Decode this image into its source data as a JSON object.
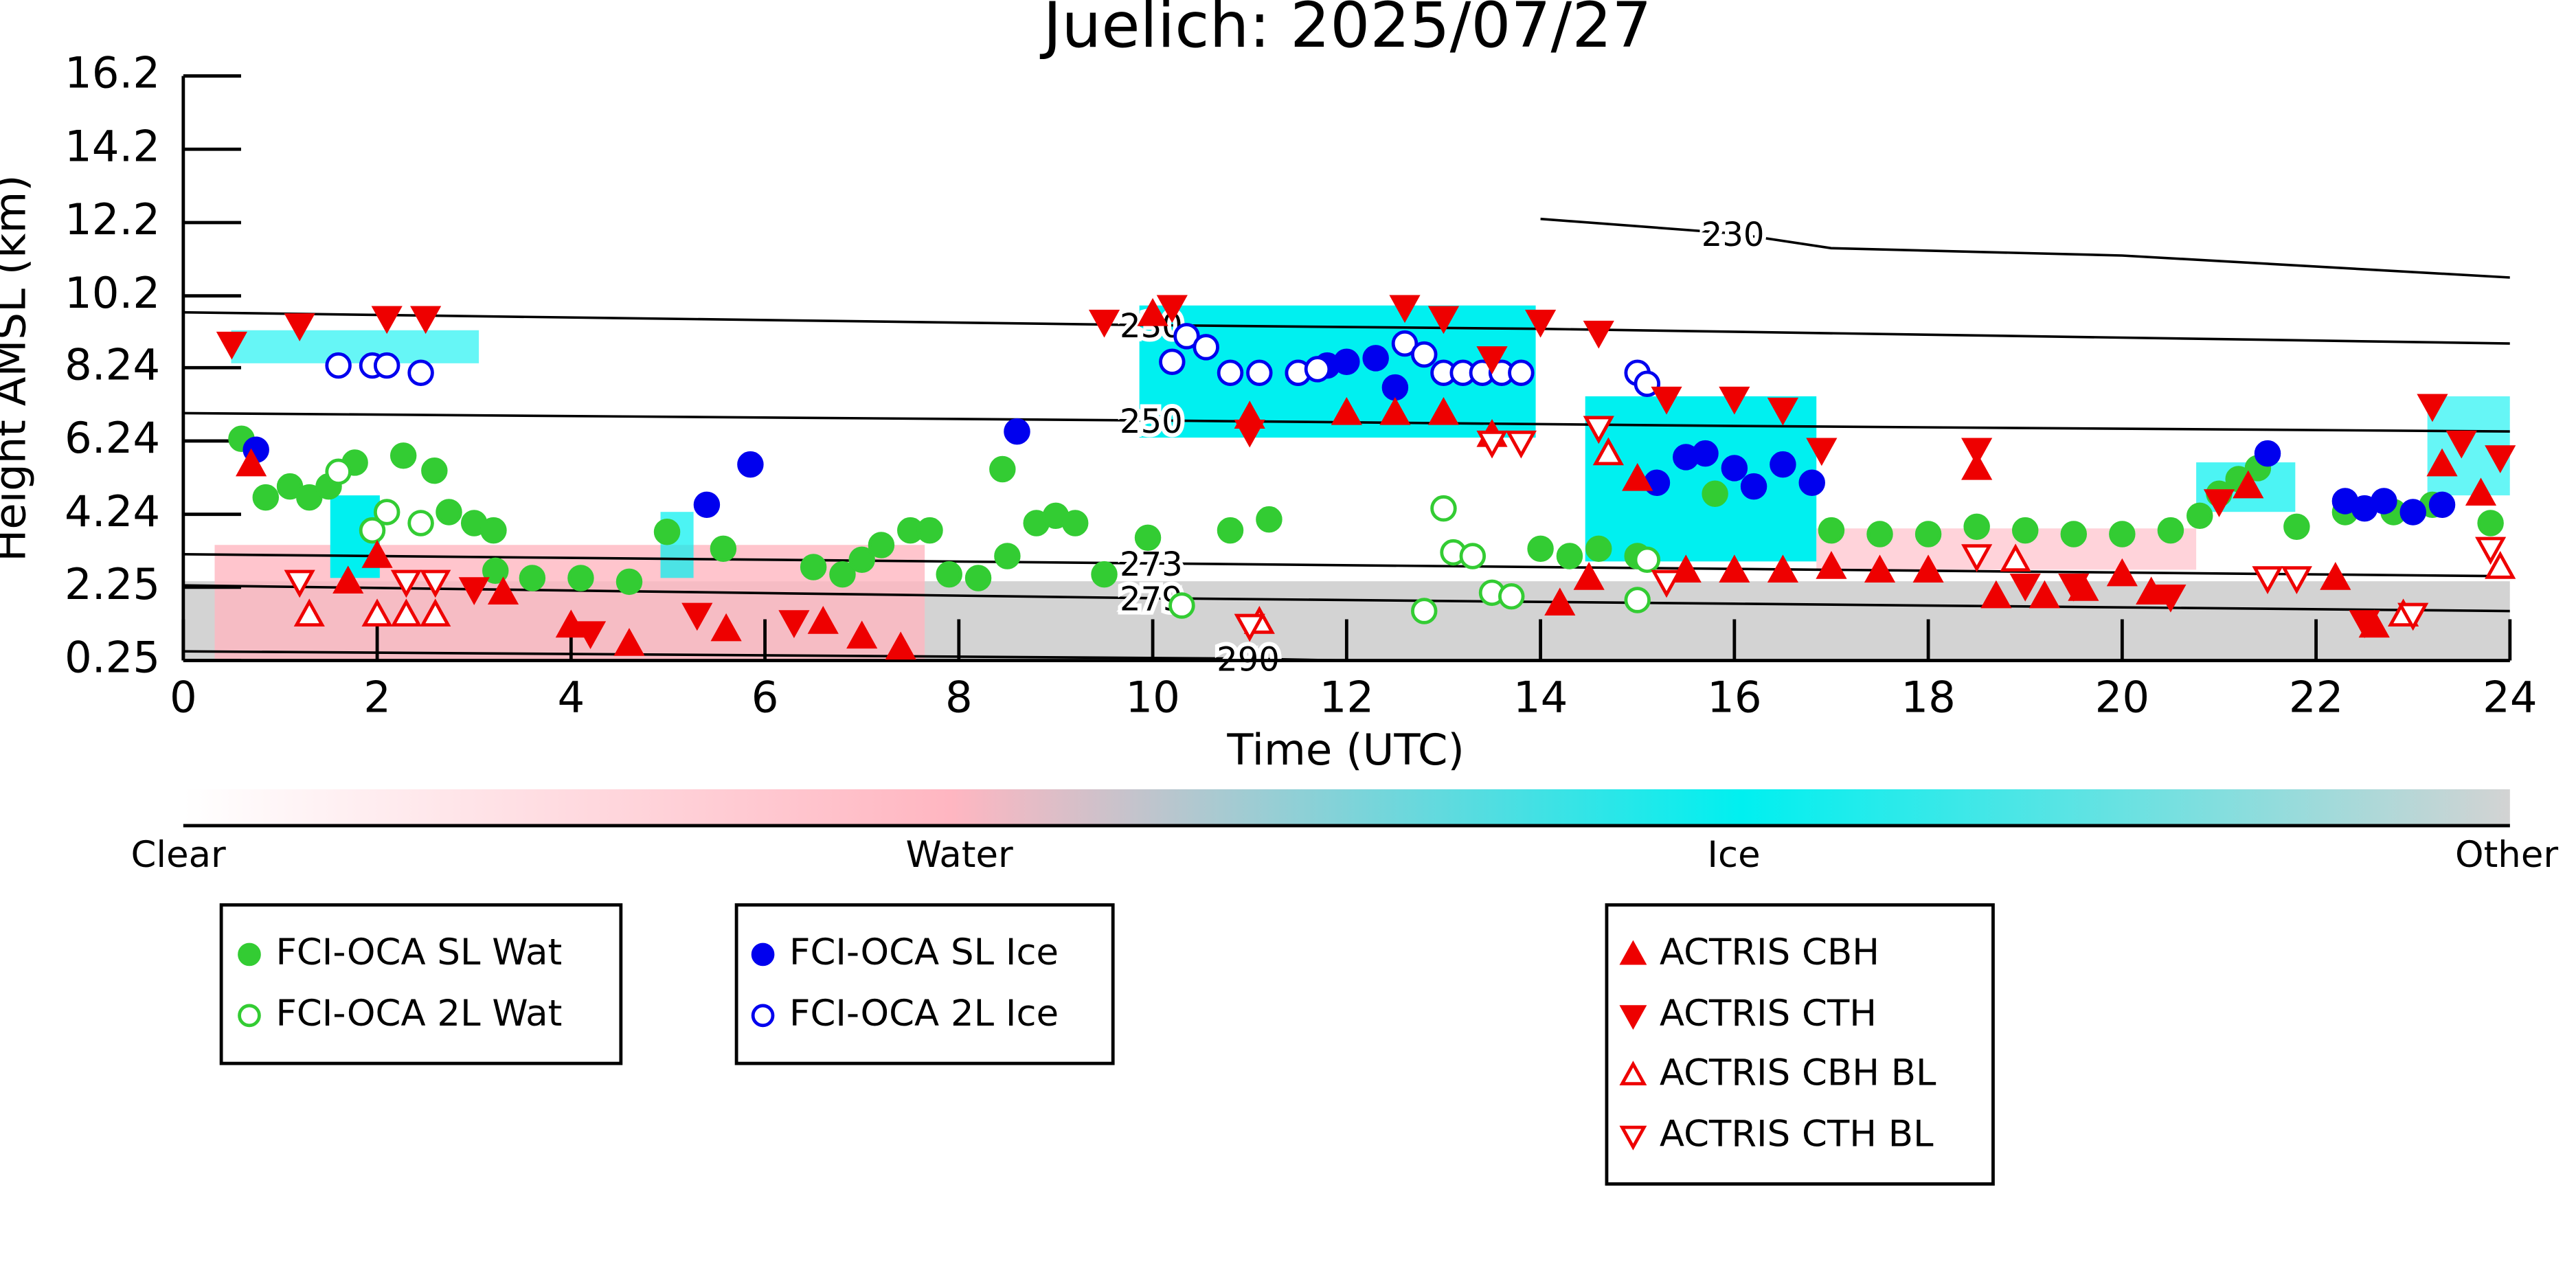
{
  "chart_data": {
    "type": "scatter",
    "title": "Juelich: 2025/07/27",
    "x_label": "Time (UTC)",
    "y_label": "Height AMSL (km)",
    "xlim": [
      0,
      24
    ],
    "xticks": [
      0,
      2,
      4,
      6,
      8,
      10,
      12,
      14,
      16,
      18,
      20,
      22,
      24
    ],
    "ylim": [
      0.25,
      16.2
    ],
    "yticks": [
      0.25,
      2.25,
      4.24,
      6.24,
      8.24,
      10.2,
      12.2,
      14.2,
      16.2
    ],
    "colorbar": {
      "labels": [
        "Clear",
        "Water",
        "Ice",
        "Other"
      ]
    },
    "contours": [
      {
        "label": "230",
        "x": [
          0,
          10,
          14,
          24
        ],
        "values": [
          9.75,
          9.4,
          9.3,
          8.9
        ]
      },
      {
        "label": "230",
        "x": [
          14,
          16,
          17,
          20,
          24
        ],
        "values": [
          12.3,
          11.9,
          11.5,
          11.3,
          10.7
        ]
      },
      {
        "label": "250",
        "x": [
          0,
          10,
          16,
          24
        ],
        "values": [
          7.0,
          6.8,
          6.65,
          6.5
        ]
      },
      {
        "label": "273",
        "x": [
          0,
          10,
          16,
          24
        ],
        "values": [
          3.15,
          2.9,
          2.75,
          2.55
        ]
      },
      {
        "label": "279",
        "x": [
          0,
          10,
          16,
          24
        ],
        "values": [
          2.3,
          1.95,
          1.8,
          1.6
        ]
      },
      {
        "label": "290",
        "x": [
          0,
          11,
          12
        ],
        "values": [
          0.5,
          0.3,
          0.25
        ]
      }
    ],
    "series": [
      {
        "name": "FCI-OCA SL Wat",
        "color": "#33cc33",
        "marker": "circle",
        "filled": true,
        "x": [
          0.6,
          0.85,
          1.1,
          1.3,
          1.5,
          1.77,
          2.27,
          2.59,
          2.74,
          3.0,
          3.2,
          3.22,
          3.6,
          4.1,
          4.6,
          4.99,
          5.57,
          6.5,
          6.8,
          7.0,
          7.2,
          7.5,
          7.7,
          7.9,
          8.2,
          8.5,
          8.45,
          8.8,
          9.0,
          9.2,
          9.5,
          9.95,
          10.8,
          11.2,
          14.0,
          14.3,
          14.6,
          15.0,
          15.8,
          17.0,
          17.5,
          18.0,
          18.5,
          19.0,
          19.5,
          20.0,
          20.5,
          20.8,
          21.0,
          21.2,
          21.4,
          21.8,
          22.3,
          22.8,
          23.2,
          23.8
        ],
        "values": [
          6.3,
          4.7,
          5.0,
          4.7,
          5.0,
          5.65,
          5.84,
          5.43,
          4.3,
          4.0,
          3.8,
          2.7,
          2.5,
          2.5,
          2.4,
          3.76,
          3.3,
          2.8,
          2.6,
          3.0,
          3.4,
          3.8,
          3.8,
          2.6,
          2.5,
          3.1,
          5.47,
          4.0,
          4.2,
          4.0,
          2.6,
          3.6,
          3.8,
          4.1,
          3.3,
          3.1,
          3.3,
          3.1,
          4.8,
          3.8,
          3.7,
          3.7,
          3.9,
          3.8,
          3.7,
          3.7,
          3.8,
          4.2,
          4.8,
          5.2,
          5.5,
          3.9,
          4.3,
          4.3,
          4.5,
          4.0
        ]
      },
      {
        "name": "FCI-OCA 2L Wat",
        "color": "#33cc33",
        "marker": "circle",
        "filled": false,
        "x": [
          1.6,
          1.95,
          2.1,
          2.45,
          10.3,
          12.8,
          13.0,
          13.1,
          13.3,
          13.5,
          13.7,
          15.0,
          15.1
        ],
        "values": [
          5.4,
          3.8,
          4.3,
          4.0,
          1.75,
          1.6,
          4.4,
          3.2,
          3.1,
          2.1,
          2.0,
          1.9,
          3.0
        ]
      },
      {
        "name": "FCI-OCA SL Ice",
        "color": "#0000ee",
        "marker": "circle",
        "filled": true,
        "x": [
          0.75,
          5.4,
          5.85,
          8.6,
          11.5,
          11.8,
          12.0,
          12.3,
          12.5,
          15.2,
          15.5,
          15.7,
          16.0,
          16.2,
          16.5,
          16.8,
          21.5,
          22.3,
          22.5,
          22.7,
          23.0,
          23.3
        ],
        "values": [
          6.0,
          4.5,
          5.6,
          6.5,
          8.1,
          8.3,
          8.4,
          8.5,
          7.7,
          5.1,
          5.8,
          5.9,
          5.5,
          5.0,
          5.6,
          5.1,
          5.9,
          4.6,
          4.4,
          4.6,
          4.3,
          4.5
        ]
      },
      {
        "name": "FCI-OCA 2L Ice",
        "color": "#0000ee",
        "marker": "circle",
        "filled": false,
        "x": [
          1.6,
          1.95,
          2.1,
          2.45,
          10.2,
          10.35,
          10.55,
          10.8,
          11.1,
          11.5,
          11.7,
          12.6,
          12.8,
          13.0,
          13.2,
          13.4,
          13.6,
          13.8,
          15.0,
          15.1
        ],
        "values": [
          8.3,
          8.3,
          8.3,
          8.1,
          8.4,
          9.1,
          8.8,
          8.1,
          8.1,
          8.1,
          8.2,
          8.9,
          8.6,
          8.1,
          8.1,
          8.1,
          8.1,
          8.1,
          8.1,
          7.8
        ]
      },
      {
        "name": "ACTRIS CBH",
        "color": "#ee0000",
        "marker": "triangle-up",
        "filled": true,
        "x": [
          0.7,
          1.7,
          2.0,
          3.3,
          4.0,
          4.6,
          5.6,
          6.6,
          7.0,
          7.4,
          10.0,
          11.0,
          12.0,
          12.5,
          13.0,
          13.5,
          14.2,
          14.5,
          15.0,
          15.5,
          16.0,
          16.5,
          17.0,
          17.5,
          18.0,
          18.5,
          18.7,
          19.2,
          19.6,
          20.0,
          20.3,
          21.3,
          22.2,
          22.6,
          23.3,
          23.7
        ],
        "values": [
          5.6,
          2.4,
          3.1,
          2.1,
          1.2,
          0.7,
          1.1,
          1.3,
          0.9,
          0.6,
          9.7,
          6.9,
          7.0,
          7.0,
          7.0,
          6.4,
          1.8,
          2.5,
          5.2,
          2.7,
          2.7,
          2.7,
          2.8,
          2.7,
          2.7,
          5.5,
          2.0,
          2.0,
          2.2,
          2.6,
          2.1,
          5.0,
          2.5,
          1.2,
          5.6,
          4.8
        ]
      },
      {
        "name": "ACTRIS CTH",
        "color": "#ee0000",
        "marker": "triangle-down",
        "filled": true,
        "x": [
          0.5,
          1.2,
          2.1,
          2.5,
          3.0,
          4.2,
          5.3,
          6.3,
          9.5,
          10.2,
          11.0,
          12.6,
          13.0,
          13.5,
          14.0,
          14.6,
          15.3,
          16.0,
          16.5,
          16.9,
          18.5,
          19.0,
          19.5,
          20.5,
          21.0,
          22.5,
          23.2,
          23.5,
          23.9
        ],
        "values": [
          8.9,
          9.4,
          9.6,
          9.6,
          2.2,
          1.0,
          1.5,
          1.3,
          9.5,
          9.9,
          6.5,
          9.9,
          9.6,
          8.5,
          9.5,
          9.2,
          7.4,
          7.4,
          7.1,
          6.0,
          6.0,
          2.3,
          2.3,
          2.0,
          4.6,
          1.3,
          7.2,
          6.2,
          5.8
        ]
      },
      {
        "name": "ACTRIS CBH BL",
        "color": "#ee0000",
        "marker": "triangle-up",
        "filled": false,
        "x": [
          1.3,
          2.0,
          2.3,
          2.6,
          11.1,
          14.7,
          18.9,
          22.9,
          23.9
        ],
        "values": [
          1.5,
          1.5,
          1.5,
          1.5,
          1.3,
          5.9,
          3.0,
          1.5,
          2.8
        ]
      },
      {
        "name": "ACTRIS CTH BL",
        "color": "#ee0000",
        "marker": "triangle-down",
        "filled": false,
        "x": [
          1.2,
          2.3,
          2.6,
          11.0,
          13.5,
          13.8,
          14.6,
          15.3,
          18.5,
          21.5,
          21.8,
          23.0,
          23.8
        ],
        "values": [
          2.4,
          2.4,
          2.4,
          1.2,
          6.2,
          6.2,
          6.6,
          2.4,
          3.1,
          2.5,
          2.5,
          1.5,
          3.3
        ]
      }
    ]
  }
}
